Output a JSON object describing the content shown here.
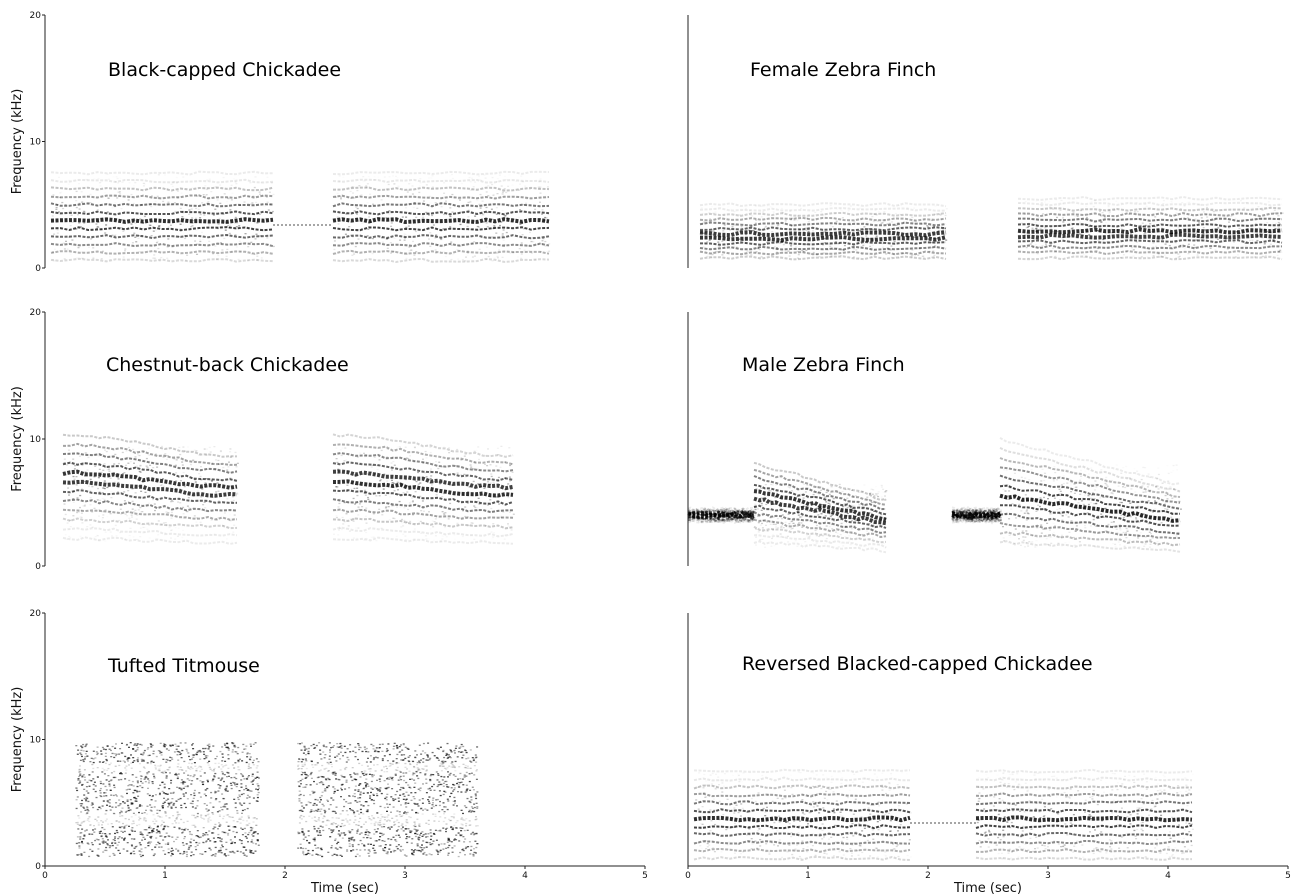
{
  "chart_data": [
    {
      "type": "spectrogram",
      "title": "Black-capped Chickadee",
      "ylabel": "Frequency (kHz)",
      "xlabel": "",
      "ylim": [
        0,
        20
      ],
      "yticks": [
        0,
        10,
        20
      ],
      "xticks": [],
      "syllables": [
        {
          "t0": 0.05,
          "t1": 1.9,
          "fmin": 0.6,
          "fmax": 7.5,
          "fdom": 3.6,
          "shape": "flat"
        },
        {
          "t0": 2.4,
          "t1": 4.2,
          "fmin": 0.6,
          "fmax": 7.5,
          "fdom": 3.6,
          "shape": "flat"
        }
      ],
      "bridge": {
        "t0": 1.9,
        "t1": 2.4,
        "f": 3.4
      }
    },
    {
      "type": "spectrogram",
      "title": "Female Zebra Finch",
      "ylabel": "",
      "xlabel": "",
      "ylim": [
        0,
        20
      ],
      "yticks": [],
      "xticks": [],
      "syllables": [
        {
          "t0": 0.1,
          "t1": 2.15,
          "fmin": 0.8,
          "fmax": 5.0,
          "fdom": 2.5,
          "shape": "flat"
        },
        {
          "t0": 2.75,
          "t1": 4.95,
          "fmin": 0.8,
          "fmax": 5.5,
          "fdom": 2.8,
          "shape": "flat"
        }
      ]
    },
    {
      "type": "spectrogram",
      "title": "Chestnut-back Chickadee",
      "ylabel": "Frequency (kHz)",
      "xlabel": "",
      "ylim": [
        0,
        20
      ],
      "yticks": [
        0,
        10,
        20
      ],
      "xticks": [],
      "syllables": [
        {
          "t0": 0.15,
          "t1": 1.6,
          "fmin": 2.0,
          "fmax": 9.5,
          "fdom": 6.5,
          "shape": "down"
        },
        {
          "t0": 2.4,
          "t1": 3.9,
          "fmin": 2.0,
          "fmax": 9.5,
          "fdom": 6.3,
          "shape": "down"
        }
      ]
    },
    {
      "type": "spectrogram",
      "title": "Male Zebra Finch",
      "ylabel": "",
      "xlabel": "",
      "ylim": [
        0,
        20
      ],
      "yticks": [],
      "xticks": [],
      "syllables": [
        {
          "t0": 0.0,
          "t1": 0.55,
          "fmin": 3.5,
          "fmax": 4.5,
          "fdom": 4.0,
          "shape": "flat"
        },
        {
          "t0": 0.55,
          "t1": 1.65,
          "fmin": 1.5,
          "fmax": 6.5,
          "fdom": 4.5,
          "shape": "sweep"
        },
        {
          "t0": 2.2,
          "t1": 2.6,
          "fmin": 3.5,
          "fmax": 4.5,
          "fdom": 4.0,
          "shape": "flat"
        },
        {
          "t0": 2.6,
          "t1": 4.1,
          "fmin": 1.5,
          "fmax": 8.0,
          "fdom": 4.5,
          "shape": "sweep"
        }
      ]
    },
    {
      "type": "spectrogram",
      "title": "Tufted Titmouse",
      "ylabel": "Frequency (kHz)",
      "xlabel": "Time (sec)",
      "ylim": [
        0,
        20
      ],
      "yticks": [
        0,
        10,
        20
      ],
      "xlim": [
        0,
        5
      ],
      "xticks": [
        0,
        1,
        2,
        3,
        4,
        5
      ],
      "syllables": [
        {
          "t0": 0.25,
          "t1": 1.78,
          "fmin": 0.8,
          "fmax": 9.8,
          "fdom": 5.5,
          "shape": "noise"
        },
        {
          "t0": 2.1,
          "t1": 3.6,
          "fmin": 0.8,
          "fmax": 9.8,
          "fdom": 5.5,
          "shape": "noise"
        }
      ]
    },
    {
      "type": "spectrogram",
      "title": "Reversed Blacked-capped Chickadee",
      "ylabel": "",
      "xlabel": "Time (sec)",
      "ylim": [
        0,
        20
      ],
      "yticks": [],
      "xlim": [
        0,
        5
      ],
      "xticks": [
        0,
        1,
        2,
        3,
        4,
        5
      ],
      "syllables": [
        {
          "t0": 0.05,
          "t1": 1.85,
          "fmin": 0.6,
          "fmax": 7.5,
          "fdom": 3.6,
          "shape": "flat"
        },
        {
          "t0": 2.4,
          "t1": 4.2,
          "fmin": 0.6,
          "fmax": 7.5,
          "fdom": 3.6,
          "shape": "flat"
        }
      ],
      "bridge": {
        "t0": 1.85,
        "t1": 2.4,
        "f": 3.4
      }
    }
  ],
  "colors": {
    "ink": "#000000",
    "background": "#ffffff",
    "axis": "#222222"
  }
}
